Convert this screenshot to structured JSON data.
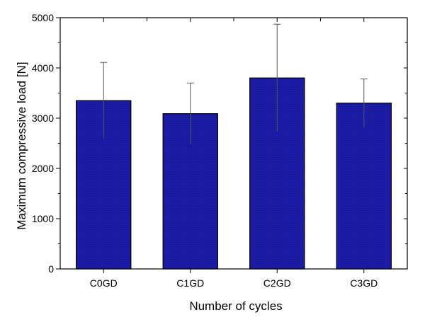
{
  "chart_data": {
    "type": "bar",
    "categories": [
      "C0GD",
      "C1GD",
      "C2GD",
      "C3GD"
    ],
    "values": [
      3350,
      3090,
      3800,
      3300
    ],
    "errors": [
      760,
      610,
      1070,
      480
    ],
    "xlabel": "Number of cycles",
    "ylabel": "Maximum compressive load [N]",
    "ylim": [
      0,
      5000
    ],
    "yticks": [
      0,
      1000,
      2000,
      3000,
      4000,
      5000
    ],
    "grid": false,
    "legend": "none",
    "colors": {
      "bar_fill": "#1c1ca6",
      "bar_stroke": "#000000",
      "error_bar": "#555555",
      "axis": "#000000"
    }
  }
}
